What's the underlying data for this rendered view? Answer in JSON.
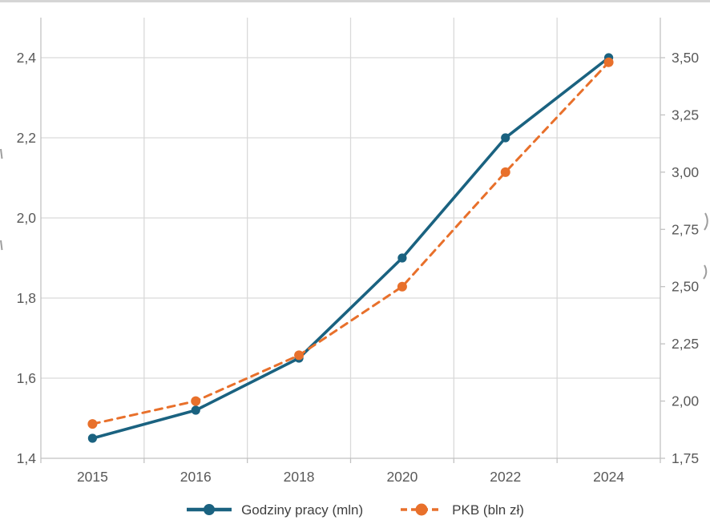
{
  "chart_data": {
    "type": "line",
    "categories": [
      "2015",
      "2016",
      "2018",
      "2020",
      "2022",
      "2024"
    ],
    "series": [
      {
        "name": "Godziny pracy (mln)",
        "axis": "left",
        "color": "#1a6280",
        "line_style": "solid",
        "marker": "circle",
        "values": [
          1.45,
          1.52,
          1.65,
          1.9,
          2.2,
          2.4
        ]
      },
      {
        "name": "PKB (bln zł)",
        "axis": "right",
        "color": "#e8702b",
        "line_style": "dashed",
        "marker": "circle",
        "values": [
          1.9,
          2.0,
          2.2,
          2.5,
          3.0,
          3.48
        ]
      }
    ],
    "x_axis": {
      "tick_labels": [
        "2015",
        "2016",
        "2018",
        "2020",
        "2022",
        "2024"
      ]
    },
    "left_axis": {
      "tick_labels": [
        "2,4",
        "2,2",
        "2,0",
        "1,8",
        "1,6",
        "1,4"
      ],
      "tick_values": [
        2.4,
        2.2,
        2.0,
        1.8,
        1.6,
        1.4
      ],
      "range_bottom": 1.4,
      "range_top": 2.4
    },
    "right_axis": {
      "tick_labels": [
        "3,50",
        "3,25",
        "3,00",
        "2,75",
        "2,50",
        "2,25",
        "2,00",
        "1,75"
      ],
      "tick_values": [
        3.5,
        3.25,
        3.0,
        2.75,
        2.5,
        2.25,
        2.0,
        1.75
      ],
      "range_bottom": 1.75,
      "range_top": 3.5
    },
    "grid": "on",
    "legend_position": "bottom",
    "colors": {
      "gridline": "#d9d9d9",
      "axis_line": "#c2c2c2",
      "tick_label": "#595959",
      "legend_text": "#3f3f3f",
      "edge_fragment": "#9e9e9e"
    }
  }
}
